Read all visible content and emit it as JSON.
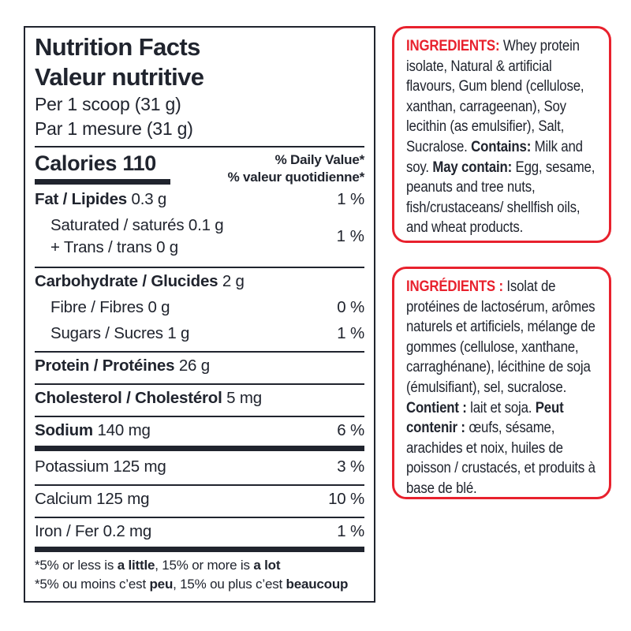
{
  "colors": {
    "accent_red": "#e8212d",
    "text_ink": "#20242e"
  },
  "label": {
    "title_en": "Nutrition Facts",
    "title_fr": "Valeur nutritive",
    "serving_en": "Per 1 scoop (31 g)",
    "serving_fr": "Par 1 mesure (31 g)",
    "calories_line": "Calories 110",
    "dv_en": "% Daily Value*",
    "dv_fr": "% valeur quotidienne*",
    "rows": {
      "fat": {
        "bold": "Fat / Lipides",
        "rest": " 0.3 g",
        "pct": "1 %"
      },
      "saturated_line1": "Saturated / saturés 0.1 g",
      "saturated_line2": "+ Trans / trans 0 g",
      "saturated_pct": "1 %",
      "carb": {
        "bold": "Carbohydrate / Glucides",
        "rest": " 2 g"
      },
      "fibre": {
        "text": "Fibre / Fibres 0 g",
        "pct": "0 %"
      },
      "sugars": {
        "text": "Sugars / Sucres 1 g",
        "pct": "1 %"
      },
      "protein": {
        "bold": "Protein / Protéines",
        "rest": " 26 g"
      },
      "cholesterol": {
        "bold": "Cholesterol / Cholestérol",
        "rest": " 5 mg"
      },
      "sodium": {
        "bold": "Sodium",
        "rest": " 140 mg",
        "pct": "6 %"
      },
      "potassium": {
        "text": "Potassium 125 mg",
        "pct": "3 %"
      },
      "calcium": {
        "text": "Calcium 125 mg",
        "pct": "10 %"
      },
      "iron": {
        "text": "Iron / Fer 0.2 mg",
        "pct": "1 %"
      }
    },
    "footnote_en": {
      "p1": "*5% or less is ",
      "b1": "a little",
      "p2": ", 15% or more is ",
      "b2": "a lot"
    },
    "footnote_fr": {
      "p1": "*5% ou moins c’est ",
      "b1": "peu",
      "p2": ", 15% ou plus c’est ",
      "b2": "beaucoup"
    }
  },
  "ingredients_en": {
    "heading": "INGREDIENTS:",
    "t1": " Whey protein isolate, Natural & artificial flavours, Gum blend (cellulose, xanthan, carrageenan), Soy lecithin (as emulsifier), Salt, Sucralose. ",
    "b1": "Contains:",
    "t2": " Milk and soy. ",
    "b2": "May contain:",
    "t3": " Egg, sesame, peanuts and tree nuts, fish/crustaceans/ shellfish oils, and wheat products."
  },
  "ingredients_fr": {
    "heading": "INGRÉDIENTS :",
    "t1": " Isolat de protéines de lactosérum, arômes naturels et artificiels, mélange de gommes (cellulose, xanthane, carraghénane), lécithine de soja (émulsifiant), sel, sucralose. ",
    "b1": "Contient :",
    "t2": " lait et soja. ",
    "b2": "Peut contenir :",
    "t3": " œufs, sésame, arachides et noix, huiles de poisson / crustacés, et produits à base de blé."
  }
}
